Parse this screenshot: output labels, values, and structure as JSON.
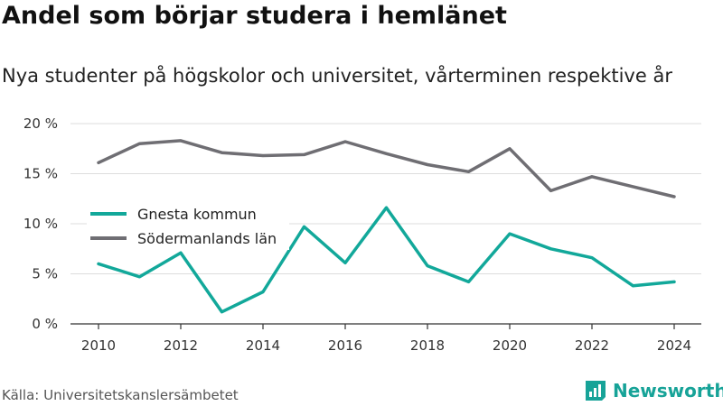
{
  "title": "Andel som börjar studera i hemlänet",
  "subtitle": "Nya studenter på högskolor och universitet, vårterminen respektive år",
  "source": "Källa: Universitetskanslersämbetet",
  "brand": "Newsworthy",
  "colors": {
    "gnesta": "#12a89a",
    "sodermanland": "#6f6e73",
    "grid": "#dddddd",
    "axis": "#333333",
    "brand": "#17a398"
  },
  "chart_data": {
    "type": "line",
    "title": "Andel som börjar studera i hemlänet",
    "subtitle": "Nya studenter på högskolor och universitet, vårterminen respektive år",
    "xlabel": "",
    "ylabel": "",
    "x": [
      2010,
      2011,
      2012,
      2013,
      2014,
      2015,
      2016,
      2017,
      2018,
      2019,
      2020,
      2021,
      2022,
      2023,
      2024
    ],
    "x_ticks": [
      "2010",
      "2012",
      "2014",
      "2016",
      "2018",
      "2020",
      "2022",
      "2024"
    ],
    "y_ticks": [
      "0 %",
      "5 %",
      "10 %",
      "15 %",
      "20 %"
    ],
    "ylim": [
      0,
      20
    ],
    "grid": true,
    "legend_position": "left, inside plot",
    "series": [
      {
        "name": "Gnesta kommun",
        "color": "#12a89a",
        "values": [
          6.0,
          4.7,
          7.1,
          1.2,
          3.2,
          9.7,
          6.1,
          11.6,
          5.8,
          4.2,
          9.0,
          7.5,
          6.6,
          3.8,
          4.2
        ]
      },
      {
        "name": "Södermanlands län",
        "color": "#6f6e73",
        "values": [
          16.1,
          18.0,
          18.3,
          17.1,
          16.8,
          16.9,
          18.2,
          17.0,
          15.9,
          15.2,
          17.5,
          13.3,
          14.7,
          13.7,
          12.7
        ]
      }
    ]
  }
}
